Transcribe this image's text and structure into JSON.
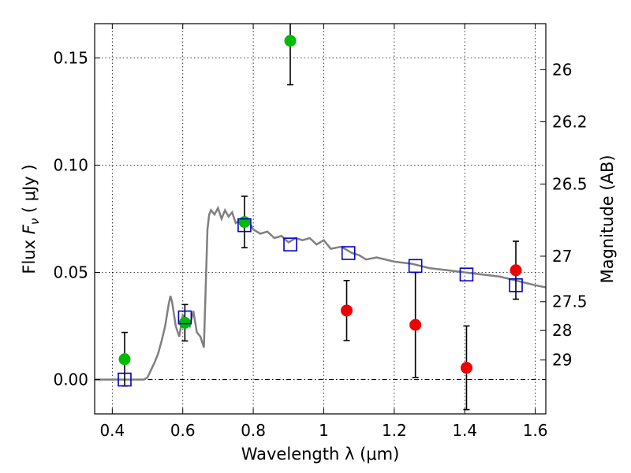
{
  "chart_data": {
    "type": "scatter",
    "xlabel": "Wavelength  λ (μm)",
    "ylabel": "Flux  F_ν  ( μJy )",
    "ylabel_parts": {
      "pre": "Flux  ",
      "sym": "F",
      "sub": "ν",
      "post": "  ( μJy )"
    },
    "ylabel_right": "Magnitude (AB)",
    "xlim": [
      0.35,
      1.63
    ],
    "ylim": [
      -0.016,
      0.166
    ],
    "grid": true,
    "x_ticks": [
      {
        "value": 0.4,
        "label": "0.4"
      },
      {
        "value": 0.6,
        "label": "0.6"
      },
      {
        "value": 0.8,
        "label": "0.8"
      },
      {
        "value": 1.0,
        "label": "1"
      },
      {
        "value": 1.2,
        "label": "1.2"
      },
      {
        "value": 1.4,
        "label": "1.4"
      },
      {
        "value": 1.6,
        "label": "1.6"
      }
    ],
    "y_ticks": [
      {
        "value": 0.0,
        "label": "0.00"
      },
      {
        "value": 0.05,
        "label": "0.05"
      },
      {
        "value": 0.1,
        "label": "0.10"
      },
      {
        "value": 0.15,
        "label": "0.15"
      }
    ],
    "right_ticks": [
      {
        "value": 26.0,
        "label": "26"
      },
      {
        "value": 26.2,
        "label": "26.2"
      },
      {
        "value": 26.5,
        "label": "26.5"
      },
      {
        "value": 27.0,
        "label": "27"
      },
      {
        "value": 27.5,
        "label": "27.5"
      },
      {
        "value": 28.0,
        "label": "28"
      },
      {
        "value": 29.0,
        "label": "29"
      }
    ],
    "model_spectrum": {
      "color": "#808080",
      "x": [
        0.35,
        0.49,
        0.5,
        0.52,
        0.53,
        0.54,
        0.55,
        0.56,
        0.565,
        0.57,
        0.58,
        0.59,
        0.6,
        0.61,
        0.62,
        0.63,
        0.64,
        0.65,
        0.66,
        0.67,
        0.675,
        0.68,
        0.69,
        0.7,
        0.71,
        0.72,
        0.73,
        0.74,
        0.75,
        0.76,
        0.77,
        0.78,
        0.79,
        0.8,
        0.82,
        0.84,
        0.86,
        0.88,
        0.9,
        0.92,
        0.94,
        0.96,
        0.98,
        1.0,
        1.02,
        1.05,
        1.08,
        1.1,
        1.12,
        1.15,
        1.2,
        1.25,
        1.3,
        1.35,
        1.4,
        1.45,
        1.5,
        1.55,
        1.6,
        1.63
      ],
      "y": [
        0.0,
        0.0,
        0.001,
        0.008,
        0.012,
        0.018,
        0.025,
        0.035,
        0.039,
        0.036,
        0.025,
        0.02,
        0.03,
        0.028,
        0.025,
        0.032,
        0.022,
        0.02,
        0.015,
        0.07,
        0.077,
        0.079,
        0.077,
        0.08,
        0.075,
        0.079,
        0.076,
        0.078,
        0.073,
        0.074,
        0.072,
        0.075,
        0.073,
        0.07,
        0.068,
        0.069,
        0.066,
        0.067,
        0.064,
        0.066,
        0.065,
        0.066,
        0.063,
        0.065,
        0.061,
        0.062,
        0.059,
        0.058,
        0.056,
        0.057,
        0.055,
        0.054,
        0.052,
        0.051,
        0.05,
        0.049,
        0.048,
        0.046,
        0.044,
        0.043
      ]
    },
    "series": [
      {
        "marker": "circle",
        "color": "#00bb00",
        "points": [
          {
            "x": 0.435,
            "y": 0.0095,
            "err": 0.0125
          },
          {
            "x": 0.606,
            "y": 0.0265,
            "err": 0.0085
          },
          {
            "x": 0.775,
            "y": 0.0735,
            "err": 0.012
          },
          {
            "x": 0.905,
            "y": 0.158,
            "err": 0.0205
          }
        ]
      },
      {
        "marker": "circle",
        "color": "#ee0000",
        "points": [
          {
            "x": 1.065,
            "y": 0.0322,
            "err": 0.014
          },
          {
            "x": 1.26,
            "y": 0.0255,
            "err": 0.0245
          },
          {
            "x": 1.405,
            "y": 0.0055,
            "err": 0.0195
          },
          {
            "x": 1.545,
            "y": 0.051,
            "err": 0.0135
          }
        ]
      },
      {
        "marker": "square",
        "color": "#0000cc",
        "points": [
          {
            "x": 0.435,
            "y": 0.0
          },
          {
            "x": 0.606,
            "y": 0.029
          },
          {
            "x": 0.775,
            "y": 0.072
          },
          {
            "x": 0.905,
            "y": 0.063
          },
          {
            "x": 1.07,
            "y": 0.059
          },
          {
            "x": 1.26,
            "y": 0.053
          },
          {
            "x": 1.405,
            "y": 0.049
          },
          {
            "x": 1.545,
            "y": 0.044
          }
        ]
      }
    ]
  }
}
